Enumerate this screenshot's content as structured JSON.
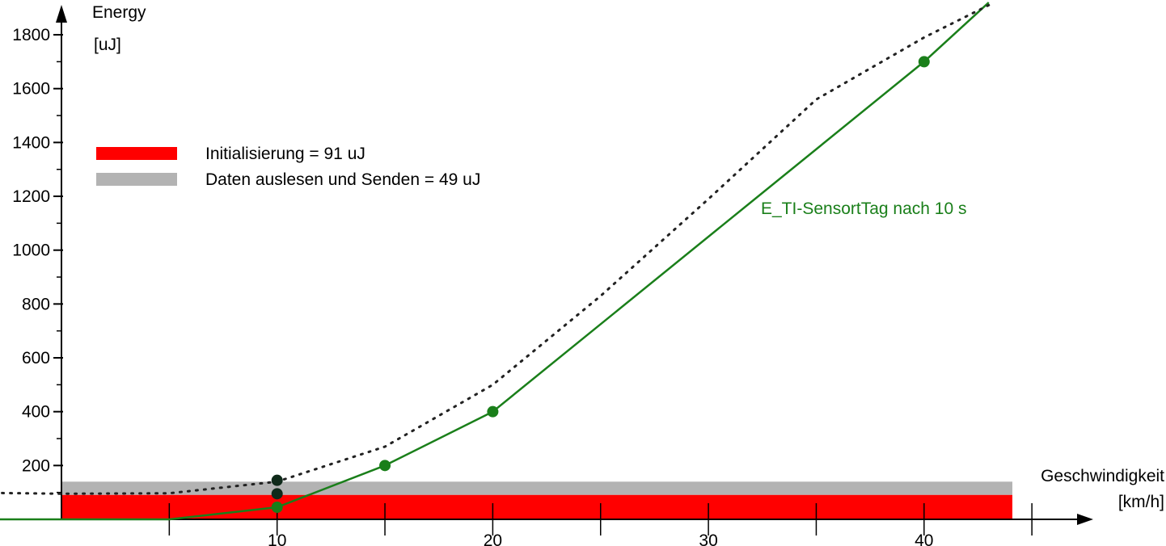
{
  "chart_data": {
    "type": "line",
    "title": "",
    "ylabel": "Energy",
    "ylabel_unit": "[uJ]",
    "xlabel": "Geschwindigkeit",
    "xlabel_unit": "[km/h]",
    "xlim": [
      -4.7,
      45
    ],
    "ylim": [
      0,
      1900
    ],
    "x_ticks": [
      10,
      20,
      30,
      40
    ],
    "x_minor_ticks": [
      5,
      15,
      25,
      35,
      45
    ],
    "y_ticks": [
      200,
      400,
      600,
      800,
      1000,
      1200,
      1400,
      1600,
      1800
    ],
    "grid": false,
    "legend_position": "upper-left",
    "bands": [
      {
        "name": "Initialisierung = 91 uJ",
        "y0": 0,
        "y1": 91,
        "color": "#ff0000"
      },
      {
        "name": "Daten auslesen und Senden = 49 uJ",
        "y0": 91,
        "y1": 140,
        "color": "#b3b3b3"
      }
    ],
    "series": [
      {
        "label": "E_TI-SensortTag nach 10 s",
        "color": "#1a7f1a",
        "style": "solid",
        "points": [
          [
            -4.7,
            0
          ],
          [
            5,
            0
          ],
          [
            10,
            45
          ],
          [
            15,
            200
          ],
          [
            20,
            400
          ],
          [
            40,
            1700
          ],
          [
            43,
            1920
          ]
        ],
        "markers": [
          [
            10,
            45
          ],
          [
            15,
            200
          ],
          [
            20,
            400
          ],
          [
            40,
            1700
          ]
        ]
      },
      {
        "color": "#222222",
        "style": "dotted",
        "points": [
          [
            -5,
            100
          ],
          [
            0,
            95
          ],
          [
            5,
            97
          ],
          [
            10,
            140
          ],
          [
            15,
            270
          ],
          [
            20,
            500
          ],
          [
            25,
            830
          ],
          [
            30,
            1190
          ],
          [
            35,
            1560
          ],
          [
            40,
            1790
          ],
          [
            43,
            1910
          ]
        ],
        "markers": []
      }
    ],
    "extra_markers": [
      {
        "x": 10,
        "y": 95,
        "color": "#0f2a1a"
      },
      {
        "x": 10,
        "y": 145,
        "color": "#0f2a1a"
      }
    ]
  }
}
